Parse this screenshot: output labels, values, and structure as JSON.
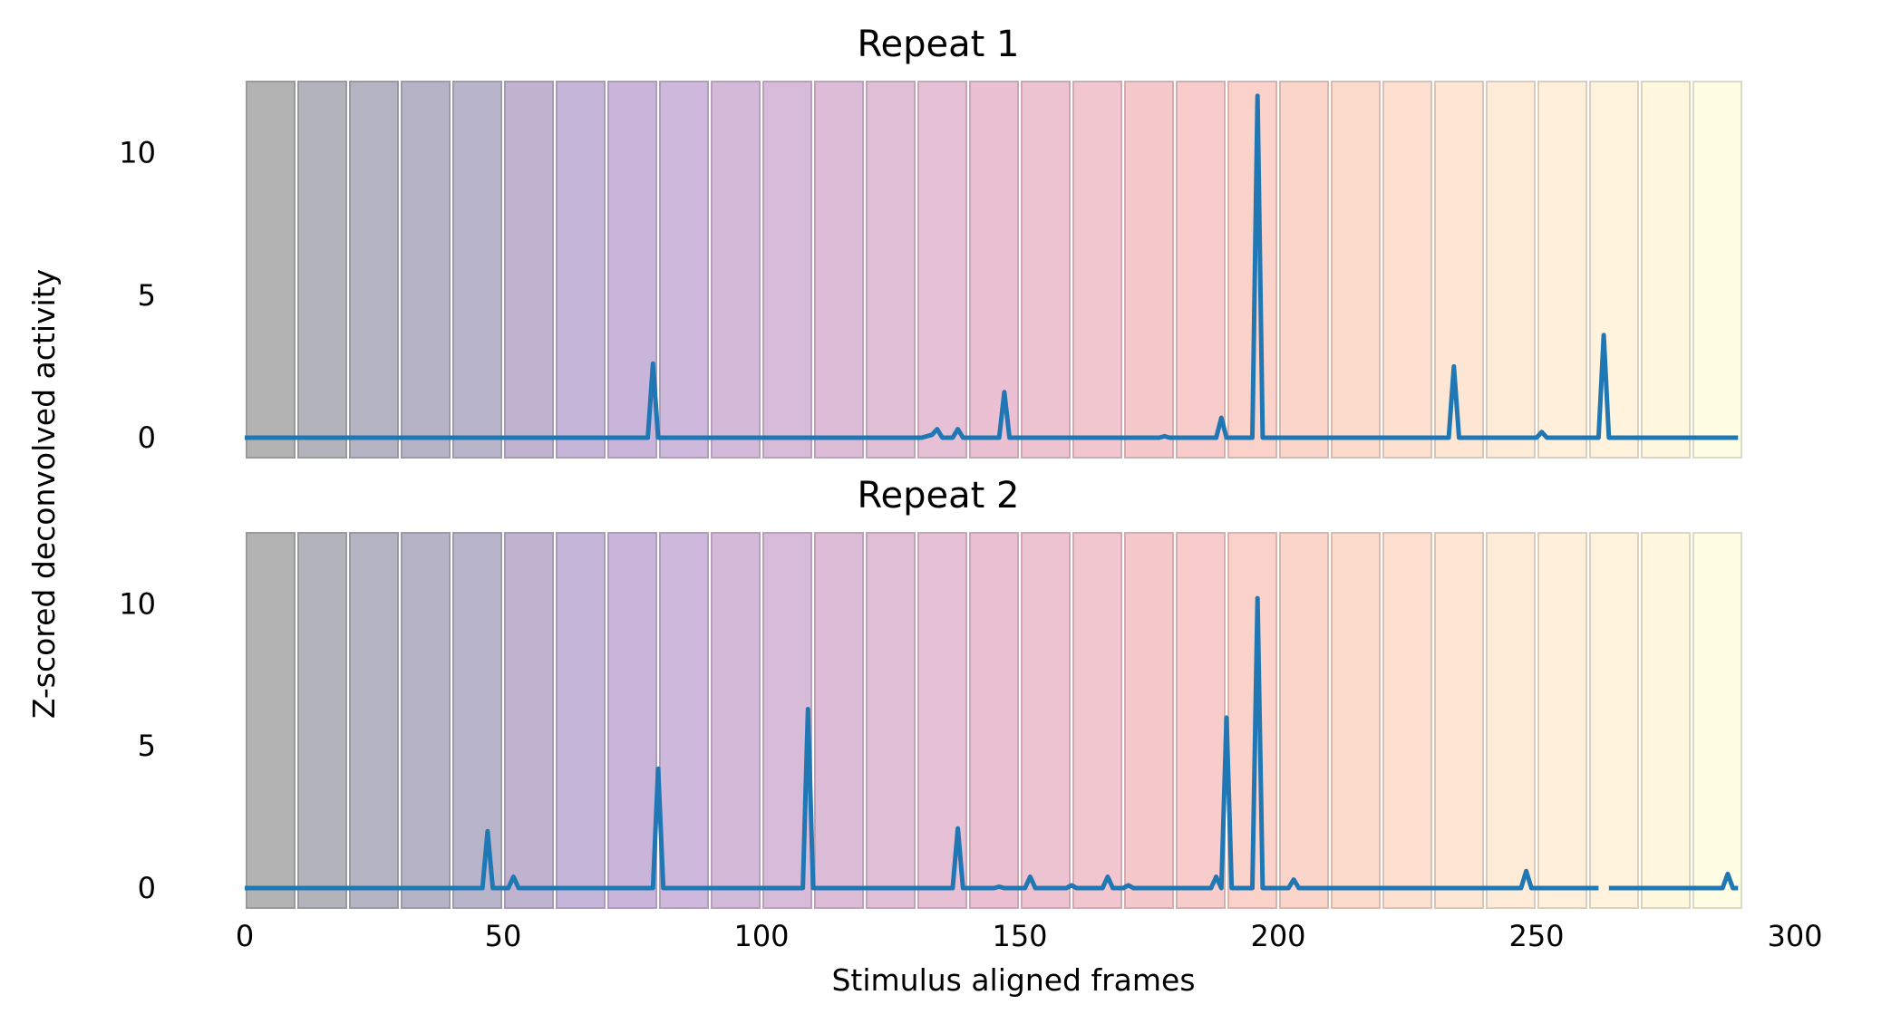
{
  "chart_data": {
    "type": "line",
    "xlabel": "Stimulus aligned frames",
    "ylabel": "Z-scored deconvolved activity",
    "xlim": [
      0,
      300
    ],
    "ylim": [
      -0.7,
      12.5
    ],
    "x_ticks": [
      0,
      50,
      100,
      150,
      200,
      250,
      300
    ],
    "y_ticks": [
      0,
      5,
      10
    ],
    "grid": false,
    "legend": "none",
    "line_color": "#1f77b4",
    "stimulus_blocks": {
      "starts": [
        0,
        10,
        20,
        30,
        40,
        50,
        60,
        70,
        80,
        90,
        100,
        110,
        120,
        130,
        140,
        150,
        160,
        170,
        180,
        190,
        200,
        210,
        220,
        230,
        240,
        250,
        260,
        270,
        280
      ],
      "width": 10,
      "colors": [
        "#b3b3b3",
        "#b3b3bb",
        "#b3b3c1",
        "#b6b3c6",
        "#b8b5cb",
        "#bfb3d0",
        "#c5b5d8",
        "#c9b5da",
        "#ceb8dc",
        "#d3bad9",
        "#d8bbd8",
        "#dcbcd7",
        "#e0bed6",
        "#e6c0d5",
        "#ebc0d3",
        "#eec3d1",
        "#f1c6cf",
        "#f5c9cc",
        "#f8ccca",
        "#fad2ca",
        "#fbd5c9",
        "#fcdacc",
        "#fde0d0",
        "#fee6d4",
        "#feecd8",
        "#ffefdb",
        "#fff3dd",
        "#fff8df",
        "#fffde3"
      ]
    },
    "panels": [
      {
        "title": "Repeat 1",
        "x": [
          0,
          78,
          79,
          80,
          81,
          131,
          133,
          134,
          135,
          137,
          138,
          139,
          146,
          147,
          148,
          177,
          178,
          179,
          188,
          189,
          190,
          195,
          196,
          197,
          233,
          234,
          235,
          250,
          251,
          252,
          262,
          263,
          264,
          289
        ],
        "y": [
          0,
          0,
          2.6,
          0,
          0,
          0,
          0.1,
          0.3,
          0,
          0,
          0.3,
          0,
          0,
          1.6,
          0,
          0,
          0.05,
          0,
          0,
          0.7,
          0,
          0,
          12,
          0,
          0,
          2.5,
          0,
          0,
          0.2,
          0,
          0,
          3.6,
          0,
          0
        ],
        "gaps": []
      },
      {
        "title": "Repeat 2",
        "x": [
          0,
          46,
          47,
          48,
          51,
          52,
          53,
          79,
          80,
          81,
          108,
          109,
          110,
          137,
          138,
          139,
          145,
          146,
          147,
          151,
          152,
          153,
          159,
          160,
          161,
          166,
          167,
          168,
          170,
          171,
          172,
          187,
          188,
          189,
          190,
          191,
          195,
          196,
          197,
          202,
          203,
          204,
          247,
          248,
          249,
          262,
          264,
          286,
          287,
          288,
          289
        ],
        "y": [
          0,
          0,
          2,
          0,
          0,
          0.4,
          0,
          0,
          4.2,
          0,
          0,
          6.3,
          0,
          0,
          2.1,
          0,
          0,
          0.05,
          0,
          0,
          0.4,
          0,
          0,
          0.1,
          0,
          0,
          0.4,
          0,
          0,
          0.1,
          0,
          0,
          0.4,
          0,
          6,
          0,
          0,
          10.2,
          0,
          0,
          0.3,
          0,
          0,
          0.6,
          0,
          0,
          0,
          0,
          0.5,
          0,
          0
        ],
        "gaps": [
          [
            262,
            264
          ]
        ]
      }
    ]
  }
}
